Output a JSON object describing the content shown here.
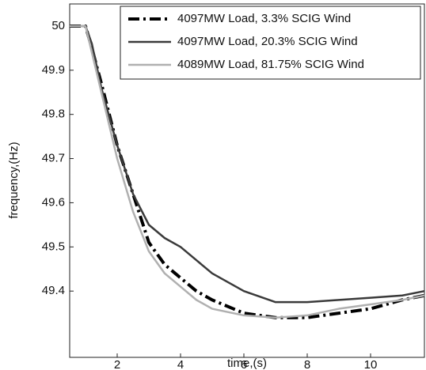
{
  "chart_data": {
    "type": "line",
    "xlabel": "time,(s)",
    "ylabel": "frequency,(Hz)",
    "x": [
      0.5,
      1,
      1.2,
      1.5,
      2,
      2.5,
      3,
      3.5,
      4,
      4.5,
      5,
      6,
      7,
      8,
      9,
      10,
      11,
      11.7
    ],
    "series": [
      {
        "name": "4097MW Load, 3.3% SCIG Wind",
        "color": "#000000",
        "linestyle": "-.",
        "width": 4,
        "values": [
          50,
          50,
          49.95,
          49.87,
          49.73,
          49.62,
          49.51,
          49.46,
          49.43,
          49.4,
          49.38,
          49.35,
          49.34,
          49.34,
          49.35,
          49.36,
          49.38,
          49.39
        ]
      },
      {
        "name": "4097MW Load, 20.3% SCIG Wind",
        "color": "#3a3a3a",
        "linestyle": "-",
        "width": 2.5,
        "values": [
          50,
          50,
          49.96,
          49.86,
          49.73,
          49.62,
          49.55,
          49.52,
          49.5,
          49.47,
          49.44,
          49.4,
          49.375,
          49.375,
          49.38,
          49.385,
          49.39,
          49.4
        ]
      },
      {
        "name": "4089MW Load, 81.75% SCIG Wind",
        "color": "#b0b0b0",
        "linestyle": "-",
        "width": 2.5,
        "values": [
          50,
          50,
          49.94,
          49.85,
          49.7,
          49.58,
          49.49,
          49.44,
          49.41,
          49.38,
          49.36,
          49.345,
          49.34,
          49.345,
          49.36,
          49.37,
          49.38,
          49.39
        ]
      }
    ],
    "xlim": [
      0.5,
      11.7
    ],
    "ylim": [
      49.25,
      50.05
    ],
    "xticks": [
      2,
      4,
      6,
      8,
      10
    ],
    "yticks": [
      49.4,
      49.5,
      49.6,
      49.7,
      49.8,
      49.9,
      50
    ],
    "legend": "upper right"
  }
}
